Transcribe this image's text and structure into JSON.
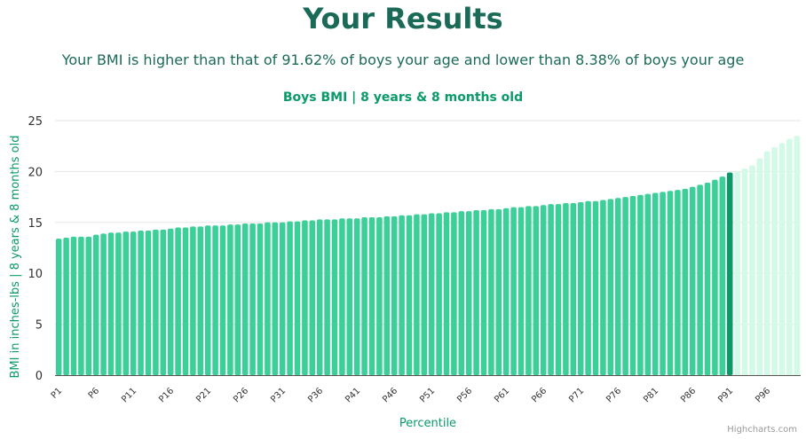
{
  "header": {
    "title": "Your Results",
    "subtitle": "Your BMI is higher than that of 91.62% of boys your age and lower than 8.38% of boys your age"
  },
  "credits": "Highcharts.com",
  "colors": {
    "bar": "#3ccf99",
    "highlight": "#0a9a6a",
    "above": "#d3f9e8",
    "title": "#1b6a58",
    "accent": "#0a9a6a"
  },
  "chart_data": {
    "type": "bar",
    "title": "Boys BMI | 8 years & 8 months old",
    "xlabel": "Percentile",
    "ylabel": "BMI in inches-lbs | 8 years & 8 months old",
    "ylim": [
      0,
      25
    ],
    "yticks": [
      0,
      5,
      10,
      15,
      20,
      25
    ],
    "grid": true,
    "legend": "none",
    "x_tick_labels": [
      "P1",
      "P6",
      "P11",
      "P16",
      "P21",
      "P26",
      "P31",
      "P36",
      "P41",
      "P46",
      "P51",
      "P56",
      "P61",
      "P66",
      "P71",
      "P76",
      "P81",
      "P86",
      "P91",
      "P96"
    ],
    "highlight_category": "P91",
    "categories": [
      "P1",
      "P2",
      "P3",
      "P4",
      "P5",
      "P6",
      "P7",
      "P8",
      "P9",
      "P10",
      "P11",
      "P12",
      "P13",
      "P14",
      "P15",
      "P16",
      "P17",
      "P18",
      "P19",
      "P20",
      "P21",
      "P22",
      "P23",
      "P24",
      "P25",
      "P26",
      "P27",
      "P28",
      "P29",
      "P30",
      "P31",
      "P32",
      "P33",
      "P34",
      "P35",
      "P36",
      "P37",
      "P38",
      "P39",
      "P40",
      "P41",
      "P42",
      "P43",
      "P44",
      "P45",
      "P46",
      "P47",
      "P48",
      "P49",
      "P50",
      "P51",
      "P52",
      "P53",
      "P54",
      "P55",
      "P56",
      "P57",
      "P58",
      "P59",
      "P60",
      "P61",
      "P62",
      "P63",
      "P64",
      "P65",
      "P66",
      "P67",
      "P68",
      "P69",
      "P70",
      "P71",
      "P72",
      "P73",
      "P74",
      "P75",
      "P76",
      "P77",
      "P78",
      "P79",
      "P80",
      "P81",
      "P82",
      "P83",
      "P84",
      "P85",
      "P86",
      "P87",
      "P88",
      "P89",
      "P90",
      "P91",
      "P92",
      "P93",
      "P94",
      "P95",
      "P96",
      "P97",
      "P98",
      "P99",
      "P100"
    ],
    "values": [
      13.4,
      13.5,
      13.6,
      13.6,
      13.6,
      13.8,
      13.9,
      14.0,
      14.0,
      14.1,
      14.1,
      14.2,
      14.2,
      14.3,
      14.3,
      14.4,
      14.5,
      14.5,
      14.6,
      14.6,
      14.7,
      14.7,
      14.7,
      14.8,
      14.8,
      14.9,
      14.9,
      14.9,
      15.0,
      15.0,
      15.0,
      15.1,
      15.1,
      15.2,
      15.2,
      15.3,
      15.3,
      15.3,
      15.4,
      15.4,
      15.4,
      15.5,
      15.5,
      15.5,
      15.6,
      15.6,
      15.7,
      15.7,
      15.8,
      15.8,
      15.9,
      15.9,
      16.0,
      16.0,
      16.1,
      16.1,
      16.2,
      16.2,
      16.3,
      16.3,
      16.4,
      16.5,
      16.5,
      16.6,
      16.6,
      16.7,
      16.8,
      16.8,
      16.9,
      16.9,
      17.0,
      17.1,
      17.1,
      17.2,
      17.3,
      17.4,
      17.5,
      17.6,
      17.7,
      17.8,
      17.9,
      18.0,
      18.1,
      18.2,
      18.3,
      18.5,
      18.7,
      18.9,
      19.2,
      19.5,
      19.9,
      20.0,
      20.3,
      20.6,
      21.3,
      22.0,
      22.4,
      22.8,
      23.2,
      23.5
    ]
  }
}
